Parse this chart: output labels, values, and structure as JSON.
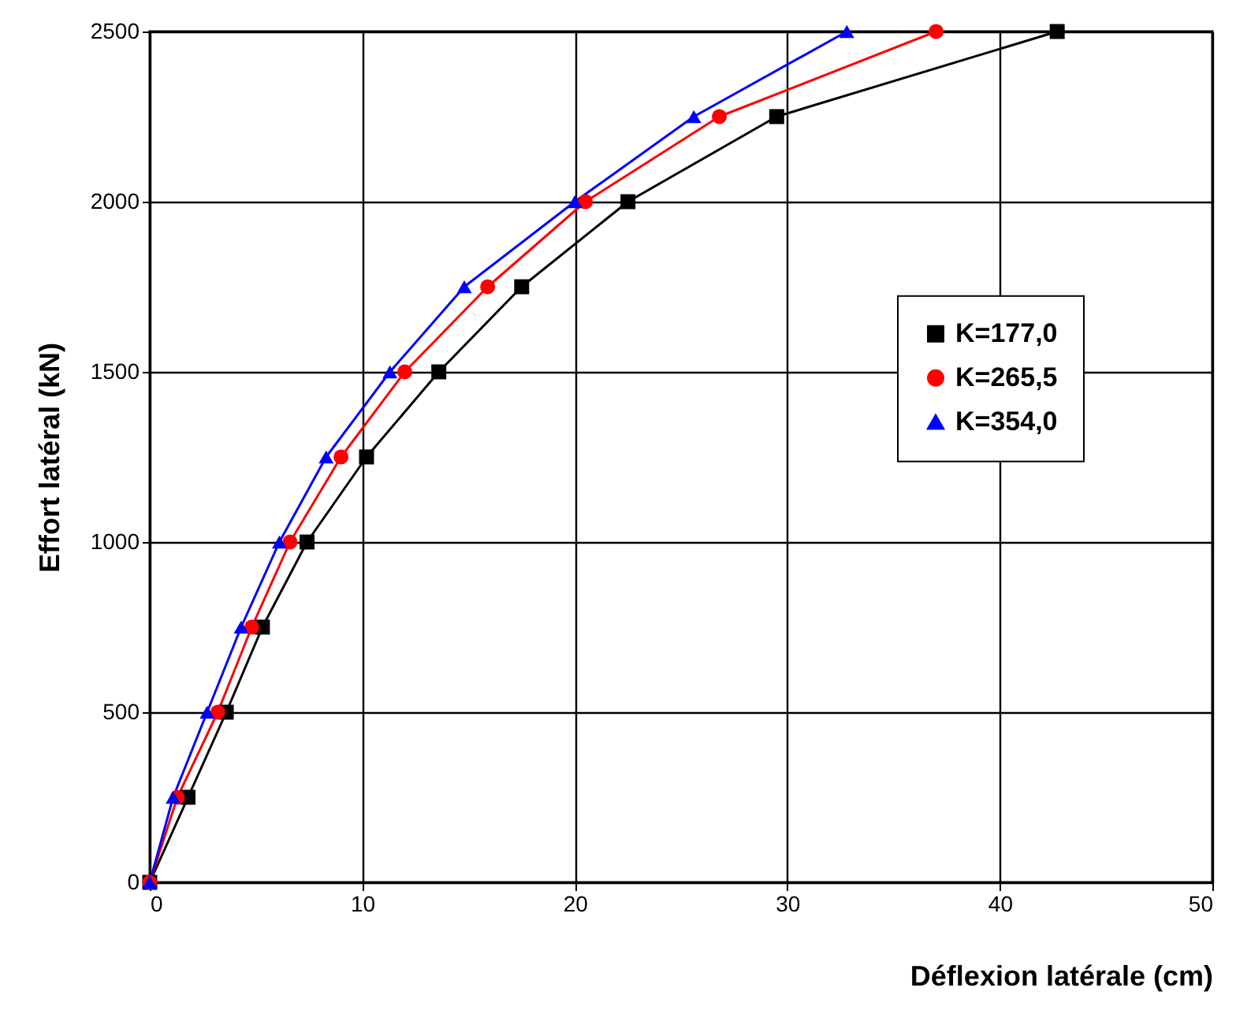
{
  "chart_data": {
    "type": "line",
    "xlabel": "Déflexion latérale  (cm)",
    "ylabel": "Effort latéral  (kN)",
    "xlim": [
      0,
      50
    ],
    "xticks": [
      0,
      10,
      20,
      30,
      40,
      50
    ],
    "ylim": [
      0,
      2500
    ],
    "yticks": [
      0,
      500,
      1000,
      1500,
      2000,
      2500
    ],
    "grid": true,
    "legend": "right",
    "line_style": "solid",
    "series": [
      {
        "name": "K=177,0",
        "color": "#000000",
        "marker": "square",
        "x": [
          0,
          1.8,
          3.6,
          5.3,
          7.4,
          10.2,
          13.6,
          17.5,
          22.5,
          29.5,
          42.7
        ],
        "values": [
          0,
          250,
          500,
          750,
          1000,
          1250,
          1500,
          1750,
          2000,
          2250,
          2500
        ]
      },
      {
        "name": "K=265,5",
        "color": "#ff0000",
        "marker": "circle",
        "x": [
          0,
          1.3,
          3.2,
          4.8,
          6.6,
          9.0,
          12.0,
          15.9,
          20.5,
          26.8,
          37.0
        ],
        "values": [
          0,
          250,
          500,
          750,
          1000,
          1250,
          1500,
          1750,
          2000,
          2250,
          2500
        ]
      },
      {
        "name": "K=354,0",
        "color": "#0000ff",
        "marker": "triangle",
        "x": [
          0,
          1.1,
          2.7,
          4.3,
          6.1,
          8.3,
          11.3,
          14.8,
          20.0,
          25.6,
          32.8
        ],
        "values": [
          0,
          250,
          500,
          750,
          1000,
          1250,
          1500,
          1750,
          2000,
          2250,
          2500
        ]
      }
    ]
  }
}
